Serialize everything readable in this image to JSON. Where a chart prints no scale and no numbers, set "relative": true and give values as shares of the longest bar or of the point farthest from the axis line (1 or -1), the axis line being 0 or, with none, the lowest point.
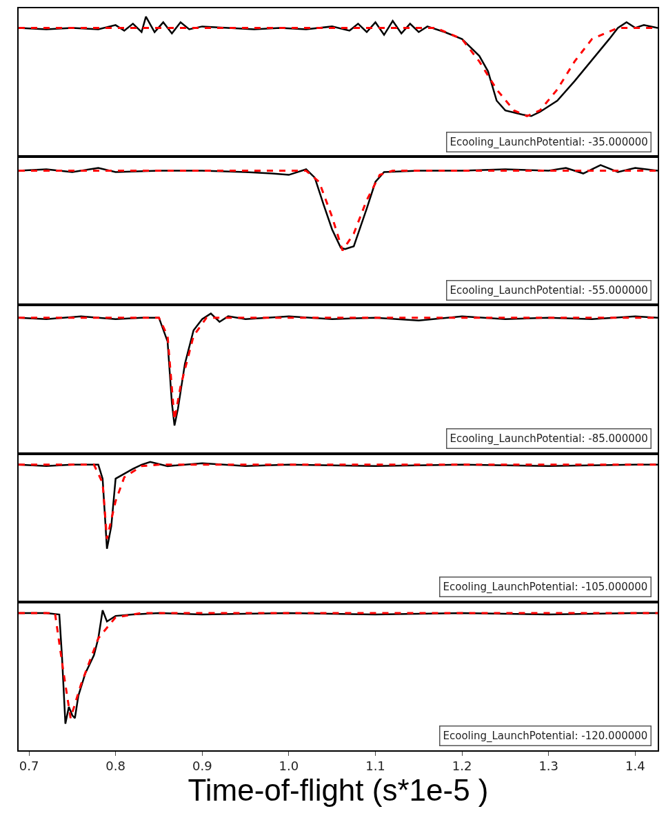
{
  "chart_data": [
    {
      "type": "line",
      "relative": true,
      "xlim": [
        0.688,
        1.426
      ],
      "tick_labels": false,
      "annotations": [
        "Ecooling_LaunchPotential: -35.000000"
      ],
      "series": [
        {
          "color": "#000000",
          "line_style": "solid",
          "x": [
            0.688,
            0.72,
            0.75,
            0.78,
            0.8,
            0.81,
            0.82,
            0.83,
            0.835,
            0.845,
            0.855,
            0.865,
            0.875,
            0.885,
            0.9,
            0.93,
            0.96,
            0.99,
            1.02,
            1.05,
            1.07,
            1.08,
            1.09,
            1.1,
            1.11,
            1.12,
            1.13,
            1.14,
            1.15,
            1.16,
            1.18,
            1.2,
            1.22,
            1.23,
            1.24,
            1.25,
            1.27,
            1.28,
            1.29,
            1.31,
            1.33,
            1.35,
            1.37,
            1.38,
            1.39,
            1.4,
            1.41,
            1.426
          ],
          "values": [
            0.92,
            0.91,
            0.92,
            0.91,
            0.94,
            0.9,
            0.95,
            0.89,
            1.0,
            0.89,
            0.96,
            0.88,
            0.96,
            0.91,
            0.93,
            0.92,
            0.91,
            0.92,
            0.91,
            0.93,
            0.9,
            0.95,
            0.89,
            0.96,
            0.87,
            0.97,
            0.88,
            0.95,
            0.89,
            0.93,
            0.89,
            0.84,
            0.72,
            0.61,
            0.4,
            0.33,
            0.3,
            0.29,
            0.32,
            0.4,
            0.54,
            0.69,
            0.84,
            0.92,
            0.96,
            0.92,
            0.94,
            0.92
          ]
        },
        {
          "color": "#ff0000",
          "line_style": "dashed",
          "x": [
            0.688,
            1.17,
            1.2,
            1.22,
            1.24,
            1.26,
            1.275,
            1.29,
            1.31,
            1.33,
            1.35,
            1.38,
            1.426
          ],
          "values": [
            0.92,
            0.92,
            0.84,
            0.68,
            0.48,
            0.33,
            0.29,
            0.33,
            0.48,
            0.68,
            0.84,
            0.92,
            0.92
          ]
        }
      ]
    },
    {
      "type": "line",
      "relative": true,
      "xlim": [
        0.688,
        1.426
      ],
      "tick_labels": false,
      "annotations": [
        "Ecooling_LaunchPotential: -55.000000"
      ],
      "series": [
        {
          "color": "#000000",
          "line_style": "solid",
          "x": [
            0.688,
            0.72,
            0.75,
            0.78,
            0.8,
            0.85,
            0.9,
            0.95,
            0.98,
            1.0,
            1.02,
            1.03,
            1.04,
            1.05,
            1.06,
            1.065,
            1.075,
            1.09,
            1.1,
            1.11,
            1.15,
            1.2,
            1.25,
            1.3,
            1.32,
            1.34,
            1.36,
            1.38,
            1.4,
            1.426
          ],
          "values": [
            0.96,
            0.97,
            0.95,
            0.98,
            0.95,
            0.96,
            0.96,
            0.95,
            0.94,
            0.93,
            0.97,
            0.91,
            0.72,
            0.54,
            0.41,
            0.4,
            0.42,
            0.69,
            0.88,
            0.95,
            0.96,
            0.96,
            0.97,
            0.96,
            0.98,
            0.94,
            1.0,
            0.95,
            0.98,
            0.96
          ]
        },
        {
          "color": "#ff0000",
          "line_style": "dashed",
          "x": [
            0.688,
            1.02,
            1.035,
            1.05,
            1.062,
            1.075,
            1.09,
            1.105,
            1.12,
            1.426
          ],
          "values": [
            0.96,
            0.96,
            0.88,
            0.63,
            0.39,
            0.51,
            0.75,
            0.93,
            0.96,
            0.96
          ]
        }
      ]
    },
    {
      "type": "line",
      "relative": true,
      "xlim": [
        0.688,
        1.426
      ],
      "tick_labels": false,
      "annotations": [
        "Ecooling_LaunchPotential: -85.000000"
      ],
      "series": [
        {
          "color": "#000000",
          "line_style": "solid",
          "x": [
            0.688,
            0.72,
            0.76,
            0.8,
            0.83,
            0.85,
            0.86,
            0.865,
            0.868,
            0.872,
            0.88,
            0.89,
            0.9,
            0.91,
            0.92,
            0.93,
            0.95,
            1.0,
            1.05,
            1.1,
            1.15,
            1.2,
            1.25,
            1.3,
            1.35,
            1.4,
            1.426
          ],
          "values": [
            0.97,
            0.96,
            0.98,
            0.96,
            0.97,
            0.97,
            0.8,
            0.36,
            0.2,
            0.32,
            0.64,
            0.88,
            0.96,
            1.0,
            0.94,
            0.98,
            0.96,
            0.98,
            0.96,
            0.97,
            0.95,
            0.98,
            0.96,
            0.97,
            0.96,
            0.98,
            0.97
          ]
        },
        {
          "color": "#ff0000",
          "line_style": "dashed",
          "x": [
            0.688,
            0.85,
            0.86,
            0.868,
            0.875,
            0.89,
            0.905,
            1.426
          ],
          "values": [
            0.97,
            0.97,
            0.84,
            0.24,
            0.48,
            0.84,
            0.97,
            0.97
          ]
        }
      ]
    },
    {
      "type": "line",
      "relative": true,
      "xlim": [
        0.688,
        1.426
      ],
      "tick_labels": false,
      "annotations": [
        "Ecooling_LaunchPotential: -105.000000"
      ],
      "series": [
        {
          "color": "#000000",
          "line_style": "solid",
          "x": [
            0.688,
            0.72,
            0.75,
            0.78,
            0.785,
            0.79,
            0.795,
            0.8,
            0.82,
            0.83,
            0.84,
            0.86,
            0.9,
            0.95,
            1.0,
            1.1,
            1.2,
            1.3,
            1.4,
            1.426
          ],
          "values": [
            0.98,
            0.97,
            0.98,
            0.98,
            0.88,
            0.38,
            0.54,
            0.88,
            0.95,
            0.98,
            1.0,
            0.97,
            0.99,
            0.97,
            0.98,
            0.97,
            0.98,
            0.97,
            0.98,
            0.98
          ]
        },
        {
          "color": "#ff0000",
          "line_style": "dashed",
          "x": [
            0.688,
            0.775,
            0.785,
            0.79,
            0.8,
            0.81,
            0.83,
            0.85,
            1.426
          ],
          "values": [
            0.98,
            0.98,
            0.85,
            0.45,
            0.72,
            0.89,
            0.97,
            0.98,
            0.98
          ]
        }
      ]
    },
    {
      "type": "line",
      "relative": true,
      "xlim": [
        0.688,
        1.426
      ],
      "xticks": [
        0.7,
        0.8,
        0.9,
        {
          "value": 1.0,
          "label": "1.0"
        },
        1.1,
        1.2,
        1.3,
        1.4
      ],
      "xlabel": "Time-of-flight (s*1e-5 )",
      "tick_labels": "x",
      "annotations": [
        "Ecooling_LaunchPotential: -120.000000"
      ],
      "series": [
        {
          "color": "#000000",
          "line_style": "solid",
          "x": [
            0.688,
            0.72,
            0.735,
            0.738,
            0.742,
            0.746,
            0.75,
            0.753,
            0.757,
            0.765,
            0.775,
            0.78,
            0.785,
            0.79,
            0.8,
            0.82,
            0.85,
            0.9,
            1.0,
            1.1,
            1.2,
            1.3,
            1.4,
            1.426
          ],
          "values": [
            0.98,
            0.98,
            0.97,
            0.68,
            0.19,
            0.31,
            0.25,
            0.23,
            0.39,
            0.55,
            0.68,
            0.8,
            1.0,
            0.92,
            0.96,
            0.97,
            0.98,
            0.97,
            0.98,
            0.97,
            0.98,
            0.97,
            0.98,
            0.98
          ]
        },
        {
          "color": "#ff0000",
          "line_style": "dashed",
          "x": [
            0.688,
            0.73,
            0.74,
            0.748,
            0.76,
            0.78,
            0.8,
            0.83,
            1.426
          ],
          "values": [
            0.98,
            0.98,
            0.55,
            0.23,
            0.47,
            0.8,
            0.95,
            0.98,
            0.98
          ]
        }
      ]
    }
  ]
}
